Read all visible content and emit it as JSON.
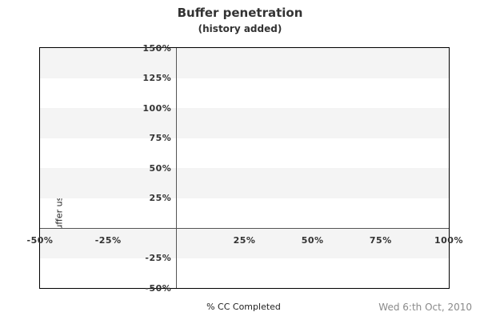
{
  "chart": {
    "title": "Buffer penetration",
    "subtitle": "(history added)",
    "xlabel": "% CC Completed",
    "ylabel": "% Buffer used"
  },
  "footer": {
    "date": "Wed 6:th Oct, 2010"
  },
  "chart_data": {
    "type": "line",
    "title": "Buffer penetration",
    "subtitle": "(history added)",
    "xlabel": "% CC Completed",
    "ylabel": "% Buffer used",
    "xlim": [
      -50,
      100
    ],
    "ylim": [
      -50,
      150
    ],
    "x_ticks": [
      {
        "value": -50,
        "label": "-50%"
      },
      {
        "value": -25,
        "label": "-25%"
      },
      {
        "value": 25,
        "label": "25%"
      },
      {
        "value": 50,
        "label": "50%"
      },
      {
        "value": 75,
        "label": "75%"
      },
      {
        "value": 100,
        "label": "100%"
      }
    ],
    "y_ticks": [
      {
        "value": 150,
        "label": "150%"
      },
      {
        "value": 125,
        "label": "125%"
      },
      {
        "value": 100,
        "label": "100%"
      },
      {
        "value": 75,
        "label": "75%"
      },
      {
        "value": 50,
        "label": "50%"
      },
      {
        "value": 25,
        "label": "25%"
      },
      {
        "value": -25,
        "label": "-25%"
      },
      {
        "value": -50,
        "label": "-50%"
      }
    ],
    "series": [],
    "grid": "horizontal-bands",
    "bands": [
      {
        "from": 125,
        "to": 150
      },
      {
        "from": 75,
        "to": 100
      },
      {
        "from": 25,
        "to": 50
      },
      {
        "from": -25,
        "to": 0
      }
    ],
    "axis_cross": {
      "x": 0,
      "y": 0
    },
    "legend": "none",
    "colors": {
      "band": "#f4f4f4",
      "axis_line": "#555555",
      "border": "#000000",
      "tick_text": "#333333",
      "title_text": "#333333",
      "footer_text": "#8a8a8a",
      "background": "#ffffff"
    }
  }
}
